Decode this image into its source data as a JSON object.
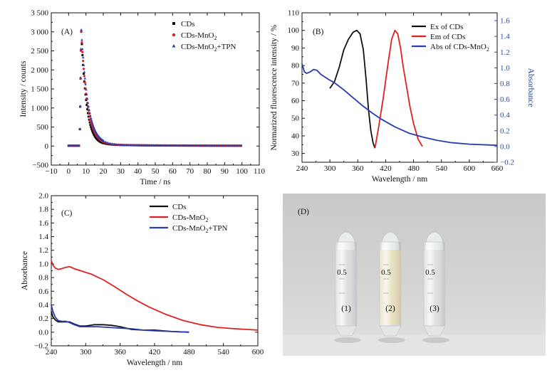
{
  "chart_data": [
    {
      "panel": "(A)",
      "type": "scatter",
      "xlabel": "Time / ns",
      "ylabel": "Intensity / counts",
      "xlim": [
        -10,
        110
      ],
      "ylim": [
        -500,
        3500
      ],
      "xticks": [
        -10,
        0,
        10,
        20,
        30,
        40,
        50,
        60,
        70,
        80,
        90,
        100,
        110
      ],
      "yticks": [
        -500,
        0,
        500,
        1000,
        1500,
        2000,
        2500,
        3000,
        3500
      ],
      "ytick_labels": [
        "−500",
        "0",
        "500",
        "1 000",
        "1 500",
        "2 000",
        "2 500",
        "3 000",
        "3 500"
      ],
      "xtick_labels": [
        "−10",
        "0",
        "10",
        "20",
        "30",
        "40",
        "50",
        "60",
        "70",
        "80",
        "90",
        "100",
        "110"
      ],
      "legend_position": "top-right",
      "decay": {
        "baseline_start": 0,
        "rise_time": 6.5,
        "peak_time": 7.3,
        "end_time": 100
      },
      "series": [
        {
          "name": "CDs",
          "marker": "square",
          "color": "#111111",
          "peak": 2950,
          "tau": 3.0
        },
        {
          "name": "CDs-MnO",
          "sub": "2",
          "marker": "circle",
          "color": "#e02020",
          "peak": 2950,
          "tau": 3.5
        },
        {
          "name": "CDs-MnO",
          "sub": "2",
          "suffix": "+TPN",
          "marker": "triangle",
          "color": "#2a3ab0",
          "peak": 3000,
          "tau": 3.8
        }
      ]
    },
    {
      "panel": "(B)",
      "type": "line",
      "xlabel": "Wavelength / nm",
      "ylabel": "Normarized fluorescence intensity / %",
      "ylabel_right": "Absorbance",
      "xlim": [
        240,
        660
      ],
      "ylim": [
        25,
        110
      ],
      "ylim_right": [
        -0.2,
        1.7
      ],
      "xticks": [
        240,
        300,
        360,
        420,
        480,
        540,
        600,
        660
      ],
      "yticks": [
        30,
        40,
        50,
        60,
        70,
        80,
        90,
        100,
        110
      ],
      "yticks_right": [
        -0.2,
        0.0,
        0.2,
        0.4,
        0.6,
        0.8,
        1.0,
        1.2,
        1.4,
        1.6
      ],
      "ytick_right_labels": [
        "−0.2",
        "0.0",
        "0.2",
        "0.4",
        "0.6",
        "0.8",
        "1.0",
        "1.2",
        "1.4",
        "1.6"
      ],
      "legend_position": "top-right",
      "series": [
        {
          "name": "Ex of CDs",
          "color": "#111111",
          "axis": "left",
          "x": [
            300,
            310,
            320,
            330,
            340,
            350,
            358,
            365,
            372,
            378,
            383,
            388,
            393,
            397
          ],
          "y": [
            67,
            71,
            79,
            89,
            95,
            99,
            100,
            98,
            89,
            72,
            55,
            43,
            36,
            33
          ]
        },
        {
          "name": "Em of CDs",
          "color": "#e02020",
          "axis": "left",
          "x": [
            397,
            405,
            415,
            425,
            433,
            440,
            446,
            452,
            458,
            465,
            472,
            480,
            490,
            499
          ],
          "y": [
            33,
            45,
            62,
            81,
            95,
            100,
            98,
            90,
            79,
            68,
            57,
            47,
            38,
            34
          ]
        },
        {
          "name": "Abs of CDs-MnO",
          "sub": "2",
          "color": "#2a3ab0",
          "axis": "right",
          "x": [
            240,
            245,
            250,
            258,
            265,
            272,
            280,
            295,
            310,
            330,
            350,
            370,
            390,
            410,
            440,
            470,
            500,
            530,
            560,
            600,
            640,
            660
          ],
          "y": [
            1.05,
            0.95,
            0.93,
            0.95,
            0.98,
            0.97,
            0.92,
            0.86,
            0.81,
            0.72,
            0.62,
            0.52,
            0.43,
            0.35,
            0.25,
            0.17,
            0.12,
            0.08,
            0.05,
            0.03,
            0.02,
            0.015
          ]
        }
      ]
    },
    {
      "panel": "(C)",
      "type": "line",
      "xlabel": "Wavelength / nm",
      "ylabel": "Absorbance",
      "xlim": [
        240,
        600
      ],
      "ylim": [
        -0.2,
        2.0
      ],
      "xticks": [
        240,
        300,
        360,
        420,
        480,
        540,
        600
      ],
      "yticks": [
        -0.2,
        0.0,
        0.2,
        0.4,
        0.6,
        0.8,
        1.0,
        1.2,
        1.4,
        1.6,
        1.8,
        2.0
      ],
      "ytick_labels": [
        "−0.2",
        "0.0",
        "0.2",
        "0.4",
        "0.6",
        "0.8",
        "1.0",
        "1.2",
        "1.4",
        "1.6",
        "1.8",
        "2.0"
      ],
      "legend_position": "top-right",
      "series": [
        {
          "name": "CDs",
          "color": "#111111",
          "x": [
            240,
            243,
            247,
            252,
            258,
            265,
            272,
            280,
            290,
            300,
            315,
            330,
            345,
            360,
            380,
            400,
            420,
            450,
            480
          ],
          "y": [
            0.3,
            0.22,
            0.18,
            0.15,
            0.15,
            0.15,
            0.15,
            0.12,
            0.09,
            0.09,
            0.11,
            0.11,
            0.1,
            0.08,
            0.04,
            0.03,
            0.03,
            0.01,
            0.0
          ]
        },
        {
          "name": "CDs-MnO",
          "sub": "2",
          "color": "#e02020",
          "x": [
            240,
            243,
            247,
            252,
            258,
            265,
            272,
            280,
            295,
            310,
            330,
            350,
            370,
            390,
            410,
            440,
            470,
            500,
            530,
            560,
            600
          ],
          "y": [
            1.05,
            0.98,
            0.94,
            0.92,
            0.93,
            0.95,
            0.96,
            0.93,
            0.89,
            0.85,
            0.77,
            0.67,
            0.56,
            0.46,
            0.37,
            0.26,
            0.17,
            0.11,
            0.07,
            0.05,
            0.03
          ]
        },
        {
          "name": "CDs-MnO",
          "sub": "2",
          "suffix": "+TPN",
          "color": "#2a3ab0",
          "x": [
            240,
            243,
            247,
            252,
            258,
            265,
            272,
            280,
            290,
            300,
            320,
            340,
            360,
            380,
            400,
            420,
            450,
            480
          ],
          "y": [
            0.4,
            0.3,
            0.22,
            0.17,
            0.16,
            0.16,
            0.14,
            0.11,
            0.08,
            0.08,
            0.08,
            0.07,
            0.06,
            0.05,
            0.03,
            0.02,
            0.01,
            0.0
          ]
        }
      ]
    }
  ],
  "photo": {
    "panel": "(D)",
    "vials": [
      {
        "label": "(1)",
        "liquid_color": "#d6dadb"
      },
      {
        "label": "(2)",
        "liquid_color": "#e6dcb4"
      },
      {
        "label": "(3)",
        "liquid_color": "#d8dbdc"
      }
    ],
    "vial_marks": [
      "0.5",
      "0.5",
      "0.5"
    ]
  }
}
